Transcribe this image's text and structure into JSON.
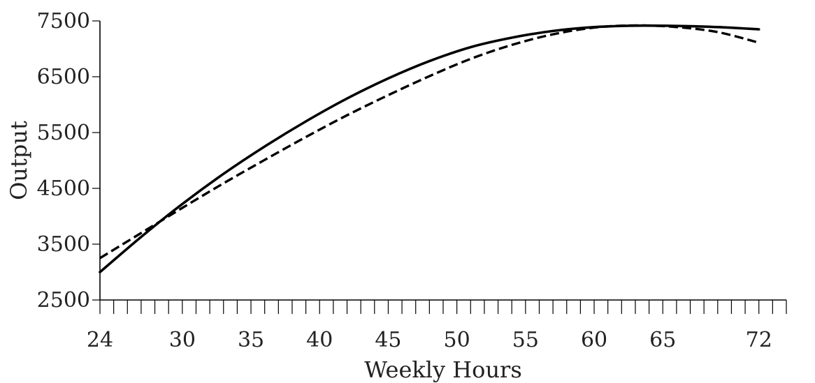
{
  "chart_data": {
    "type": "line",
    "xlabel": "Weekly Hours",
    "ylabel": "Output",
    "xlim": [
      24,
      74
    ],
    "ylim": [
      2500,
      7500
    ],
    "xticks": [
      24,
      30,
      35,
      40,
      45,
      50,
      55,
      60,
      65,
      72
    ],
    "yticks": [
      2500,
      3500,
      4500,
      5500,
      6500,
      7500
    ],
    "minor_xtick_step": 1,
    "grid": false,
    "series": [
      {
        "style": "solid",
        "x": [
          24,
          27,
          30,
          33,
          36,
          39,
          42,
          45,
          48,
          51,
          54,
          57,
          60,
          63,
          66,
          69,
          72
        ],
        "y": [
          3000,
          3630,
          4220,
          4760,
          5250,
          5700,
          6110,
          6470,
          6780,
          7030,
          7200,
          7320,
          7390,
          7415,
          7410,
          7390,
          7350
        ]
      },
      {
        "style": "dashed",
        "x": [
          24,
          27,
          30,
          33,
          36,
          39,
          42,
          45,
          48,
          51,
          54,
          57,
          60,
          63,
          66,
          69,
          72
        ],
        "y": [
          3250,
          3700,
          4150,
          4590,
          5010,
          5420,
          5810,
          6170,
          6510,
          6820,
          7070,
          7260,
          7380,
          7420,
          7390,
          7300,
          7110
        ]
      }
    ]
  }
}
